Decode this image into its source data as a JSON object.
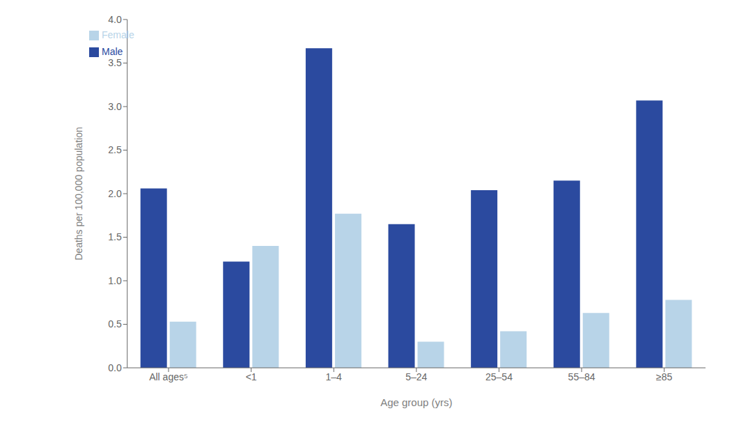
{
  "chart_data": {
    "type": "bar",
    "categories": [
      "All ages⁵",
      "<1",
      "1–4",
      "5–24",
      "25–54",
      "55–84",
      "≥85"
    ],
    "series": [
      {
        "name": "Male",
        "color": "#2B4A9F",
        "values": [
          2.06,
          1.22,
          3.67,
          1.65,
          2.04,
          2.15,
          3.07
        ]
      },
      {
        "name": "Female",
        "color": "#B8D4E8",
        "values": [
          0.53,
          1.4,
          1.77,
          0.3,
          0.42,
          0.63,
          0.78
        ]
      }
    ],
    "xlabel": "Age group (yrs)",
    "ylabel": "Deaths per 100,000 population",
    "ylim": [
      0,
      4.0
    ],
    "yticks": [
      {
        "value": 0,
        "label": "0.0"
      },
      0.5,
      {
        "value": 1,
        "label": "1.0"
      },
      1.5,
      {
        "value": 2,
        "label": "2.0"
      },
      2.5,
      {
        "value": 3,
        "label": "3.0"
      },
      3.5,
      {
        "value": 4,
        "label": "4.0"
      }
    ],
    "legend": "upper left",
    "grid": false
  }
}
